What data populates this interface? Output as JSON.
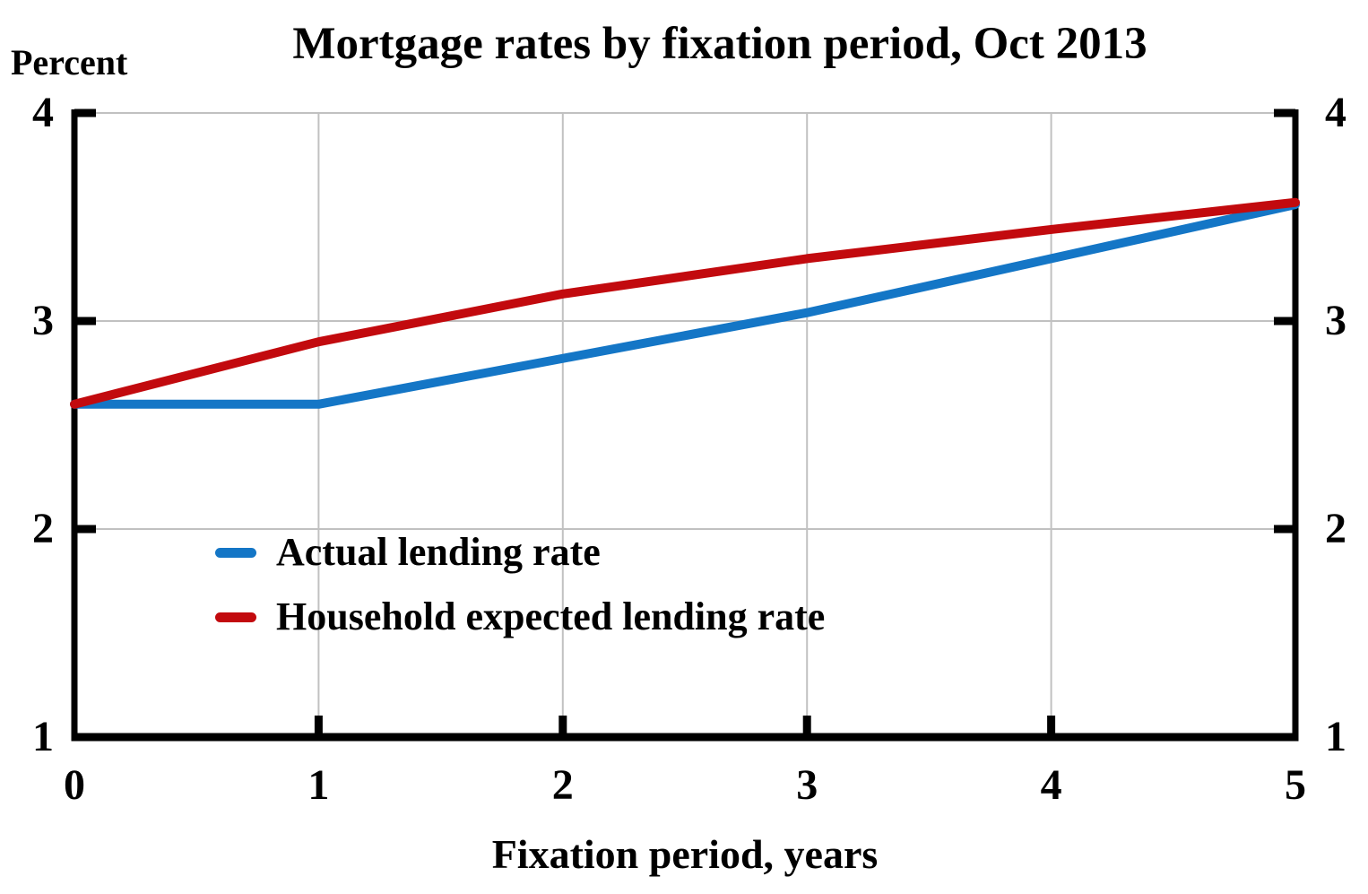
{
  "title": "Mortgage rates by fixation period, Oct 2013",
  "y_unit_label": "Percent",
  "x_axis_title": "Fixation period, years",
  "colors": {
    "actual_line": "#1476C6",
    "expected_line": "#C20A0E",
    "gridline": "#C1C1C1",
    "axis": "#000000",
    "background": "#FFFFFF"
  },
  "chart_data": {
    "type": "line",
    "title": "Mortgage rates by fixation period, Oct 2013",
    "xlabel": "Fixation period, years",
    "ylabel": "Percent",
    "x": [
      0,
      1,
      2,
      3,
      4,
      5
    ],
    "series": [
      {
        "name": "Actual lending rate",
        "color": "#1476C6",
        "values": [
          2.6,
          2.6,
          2.82,
          3.04,
          3.3,
          3.56
        ]
      },
      {
        "name": "Household expected lending rate",
        "color": "#C20A0E",
        "values": [
          2.6,
          2.9,
          3.13,
          3.3,
          3.44,
          3.57
        ]
      }
    ],
    "xlim": [
      0,
      5
    ],
    "ylim": [
      1,
      4
    ],
    "x_ticks": [
      0,
      1,
      2,
      3,
      4,
      5
    ],
    "y_ticks": [
      1,
      2,
      3,
      4
    ],
    "grid": true,
    "legend_position": "inside-center-left",
    "line_width": 10
  }
}
